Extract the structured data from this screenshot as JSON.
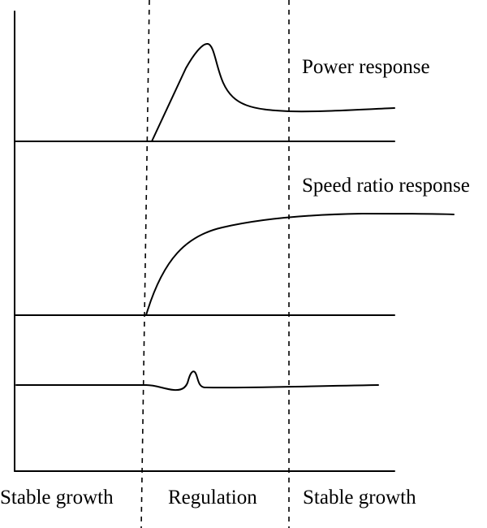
{
  "diagram": {
    "labels": {
      "power_response": "Power response",
      "speed_ratio_response": "Speed ratio response"
    },
    "phases": {
      "stable_growth_left": "Stable growth",
      "regulation": "Regulation",
      "stable_growth_right": "Stable growth"
    }
  }
}
